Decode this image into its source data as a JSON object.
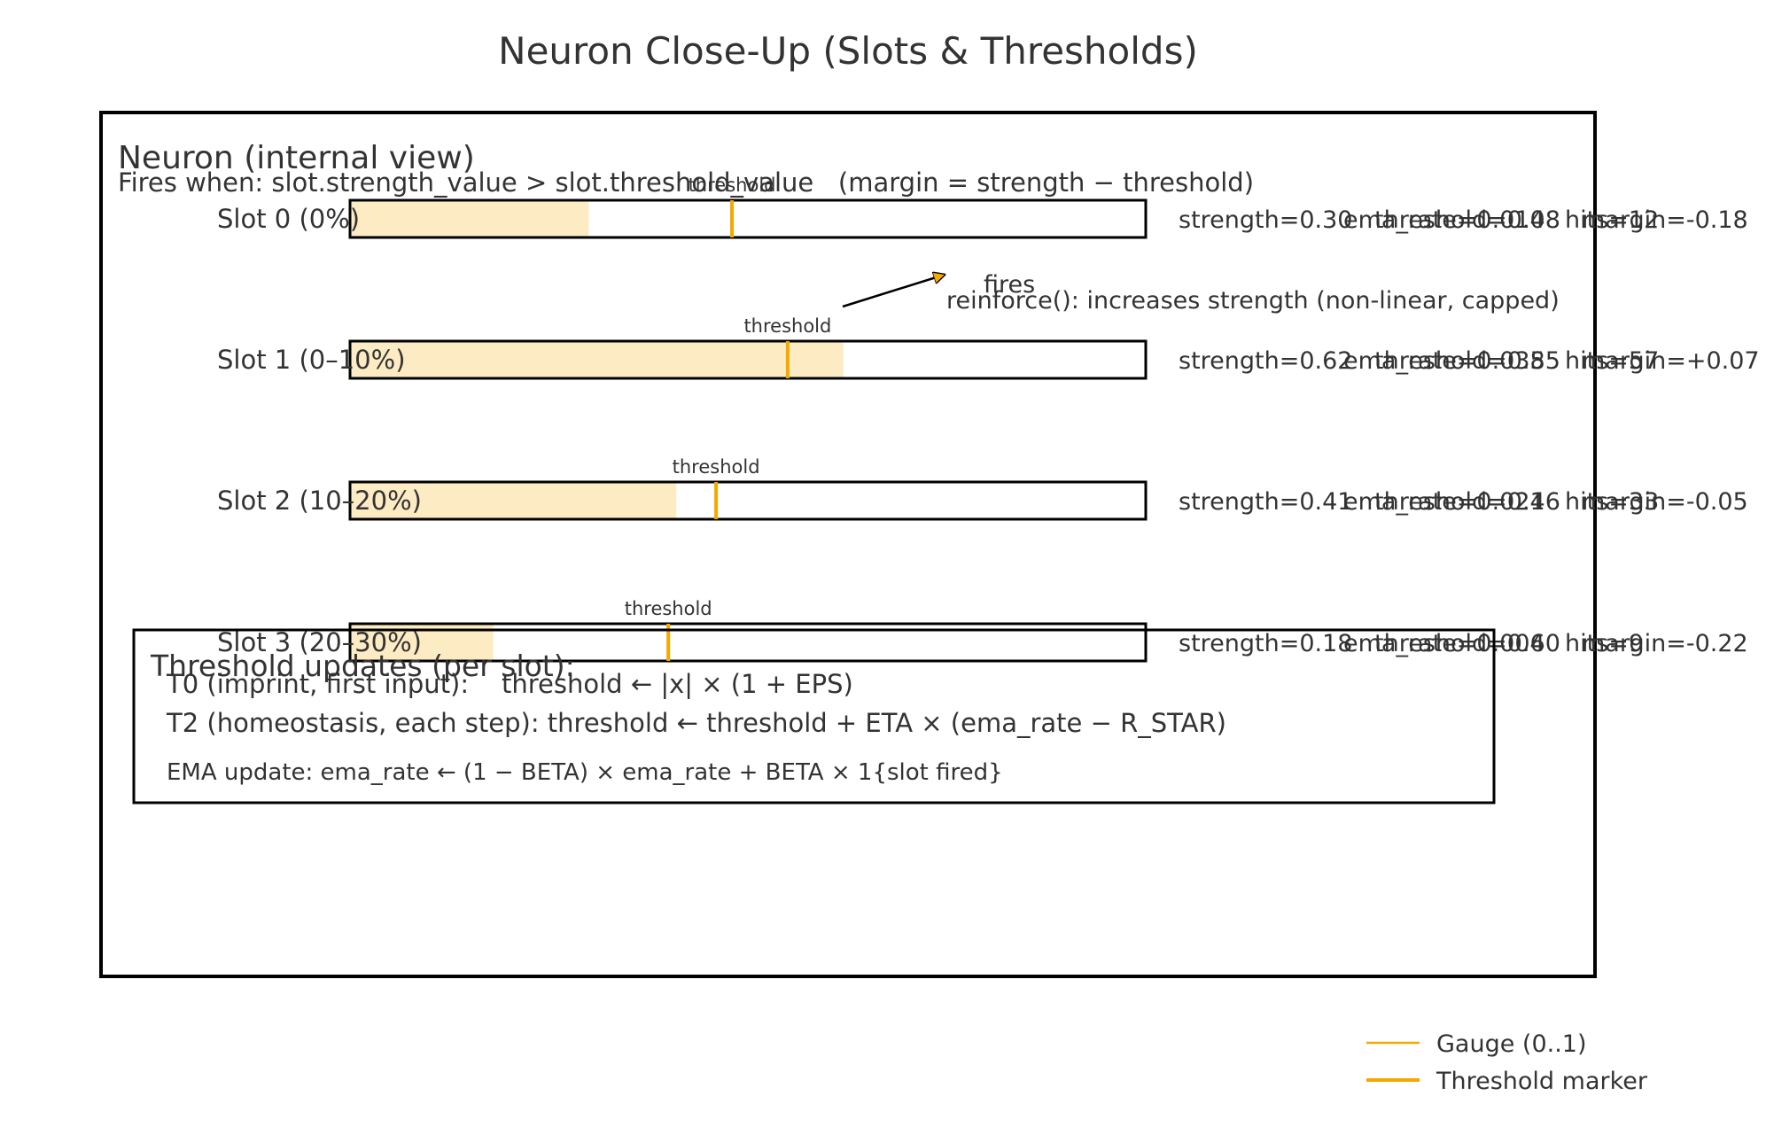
{
  "title": "Neuron Close-Up (Slots & Thresholds)",
  "neuron_box": {
    "heading": "Neuron (internal view)",
    "fires_rule": "Fires when: slot.strength_value > slot.threshold_value   (margin = strength − threshold)"
  },
  "threshold_marker_label": "threshold",
  "slots": [
    {
      "label": "Slot 0 (0%)",
      "strength": 0.3,
      "threshold": 0.48,
      "strength_text": "strength=0.30",
      "threshold_text": "threshold=0.48",
      "margin_text": "margin=-0.18",
      "ema_text": "ema_rate=0.010",
      "hits_text": "hits=12"
    },
    {
      "label": "Slot 1 (0–10%)",
      "strength": 0.62,
      "threshold": 0.55,
      "strength_text": "strength=0.62",
      "threshold_text": "threshold=0.55",
      "margin_text": "margin=+0.07",
      "ema_text": "ema_rate=0.038",
      "hits_text": "hits=57"
    },
    {
      "label": "Slot 2 (10–20%)",
      "strength": 0.41,
      "threshold": 0.46,
      "strength_text": "strength=0.41",
      "threshold_text": "threshold=0.46",
      "margin_text": "margin=-0.05",
      "ema_text": "ema_rate=0.021",
      "hits_text": "hits=33"
    },
    {
      "label": "Slot 3 (20–30%)",
      "strength": 0.18,
      "threshold": 0.4,
      "strength_text": "strength=0.18",
      "threshold_text": "threshold=0.40",
      "margin_text": "margin=-0.22",
      "ema_text": "ema_rate=0.006",
      "hits_text": "hits=9"
    }
  ],
  "fires_annotation": {
    "label": "fires",
    "note": "reinforce(): increases strength (non-linear, capped)"
  },
  "threshold_updates": {
    "heading": "Threshold updates (per slot):",
    "t0": "T0 (imprint, first input):    threshold ← |x| × (1 + EPS)",
    "t2": "T2 (homeostasis, each step): threshold ← threshold + ETA × (ema_rate − R_STAR)",
    "ema": "EMA update: ema_rate ← (1 − BETA) × ema_rate + BETA × 1{slot fired}"
  },
  "legend": {
    "items": [
      {
        "label": "Gauge (0..1)",
        "color": "#f5a800"
      },
      {
        "label": "Threshold marker",
        "color": "#f5a800"
      }
    ]
  },
  "colors": {
    "gauge_fill": "#fdebc4",
    "threshold": "#f5a800",
    "frame": "#000000",
    "text": "#333333"
  }
}
